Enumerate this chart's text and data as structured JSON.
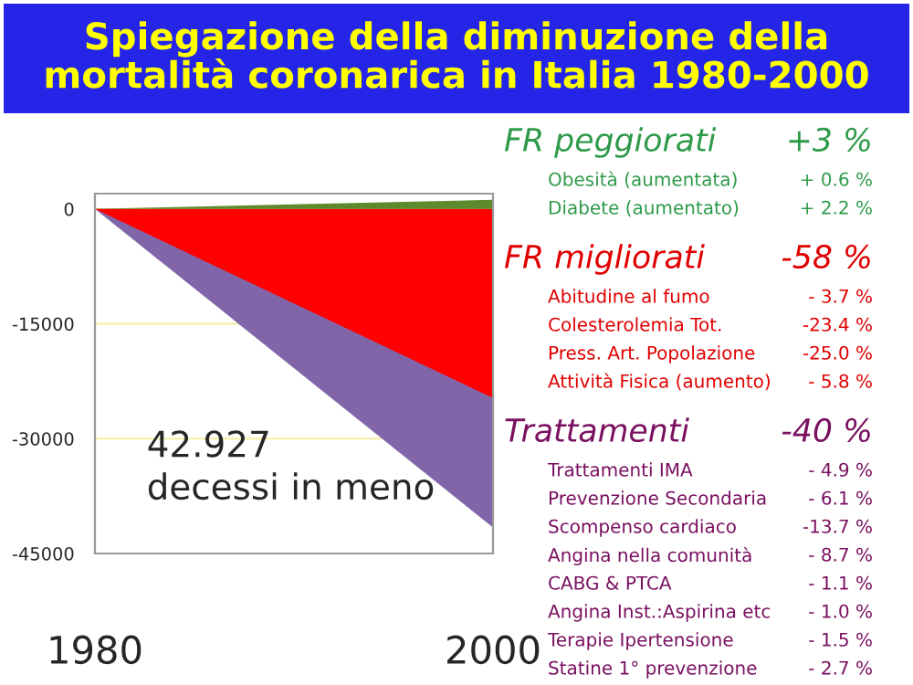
{
  "chart_data": {
    "type": "area",
    "title": "Spiegazione della diminuzione della\nmortalità coronarica in Italia 1980-2000",
    "x": [
      1980,
      2000
    ],
    "series": [
      {
        "color": "#8066a8",
        "values": [
          0,
          -41600
        ]
      },
      {
        "color": "#ff0000",
        "values": [
          0,
          -24700
        ]
      },
      {
        "color": "#5e8a2e",
        "values": [
          0,
          1200
        ]
      }
    ],
    "xlim": [
      1980,
      2000
    ],
    "xticks": [
      1980,
      2000
    ],
    "ylim": [
      -45000,
      2000
    ],
    "yticks": [
      -45000,
      -30000,
      -15000,
      0
    ],
    "grid": "y",
    "legend": false,
    "annotations": [
      "42.927\ndecessi in meno",
      "FR peggiorati",
      "+3 %",
      "Obesità (aumentata)",
      "+ 0.6 %",
      "Diabete (aumentato)",
      "+ 2.2 %",
      "FR migliorati",
      "-58 %",
      "Abitudine al fumo",
      "- 3.7 %",
      "Colesterolemia Tot.",
      "-23.4 %",
      "Press. Art. Popolazione",
      "-25.0 %",
      "Attività Fisica (aumento)",
      "- 5.8 %",
      "Trattamenti",
      "-40 %",
      "Trattamenti IMA",
      "- 4.9 %",
      "Prevenzione Secondaria",
      "- 6.1 %",
      "Scompenso cardiaco",
      "-13.7 %",
      "Angina nella comunità",
      "- 8.7 %",
      "CABG & PTCA",
      "- 1.1 %",
      "Angina Inst.:Aspirina etc",
      "- 1.0 %",
      "Terapie Ipertensione",
      "- 1.5 %",
      "Statine 1° prevenzione",
      "- 2.7 %"
    ]
  }
}
